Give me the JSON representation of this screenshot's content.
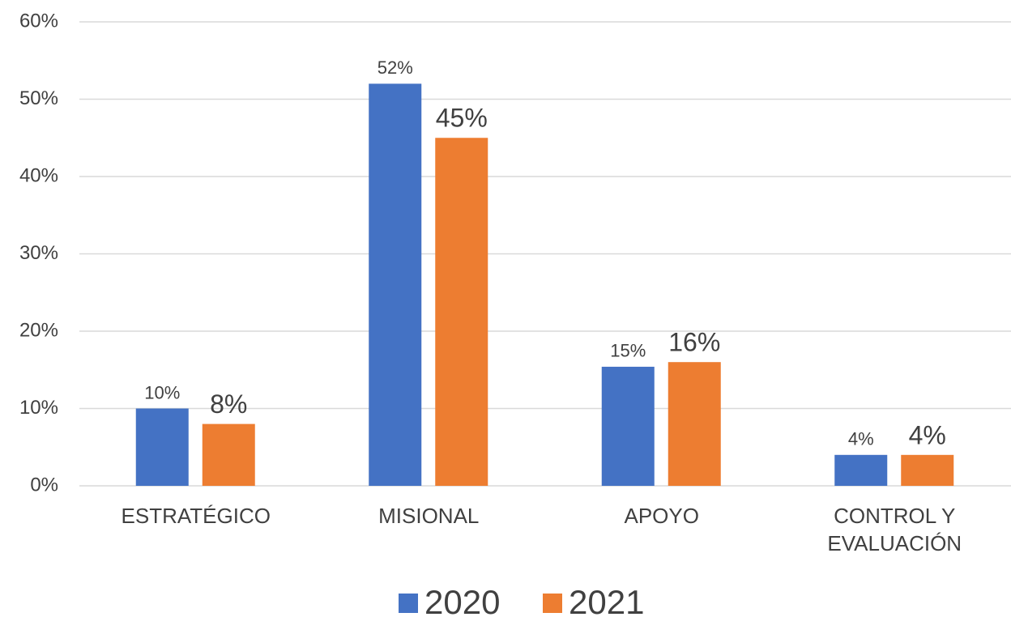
{
  "chart_data": {
    "type": "bar",
    "categories": [
      "ESTRATÉGICO",
      "MISIONAL",
      "APOYO",
      "CONTROL Y EVALUACIÓN"
    ],
    "series": [
      {
        "name": "2020",
        "color": "#4472c4",
        "values": [
          10,
          52,
          15.4,
          4
        ],
        "value_labels": [
          "10%",
          "52%",
          "15%",
          "4%"
        ]
      },
      {
        "name": "2021",
        "color": "#ed7d31",
        "values": [
          8,
          45,
          16,
          4
        ],
        "value_labels": [
          "8%",
          "45%",
          "16%",
          "4%"
        ]
      }
    ],
    "ylim": [
      0,
      60
    ],
    "yticks": [
      {
        "value": 0,
        "label": "0%"
      },
      {
        "value": 10,
        "label": "10%"
      },
      {
        "value": 20,
        "label": "20%"
      },
      {
        "value": 30,
        "label": "30%"
      },
      {
        "value": 40,
        "label": "40%"
      },
      {
        "value": 50,
        "label": "50%"
      },
      {
        "value": 60,
        "label": "60%"
      }
    ],
    "grid": true,
    "legend": "bottom"
  }
}
